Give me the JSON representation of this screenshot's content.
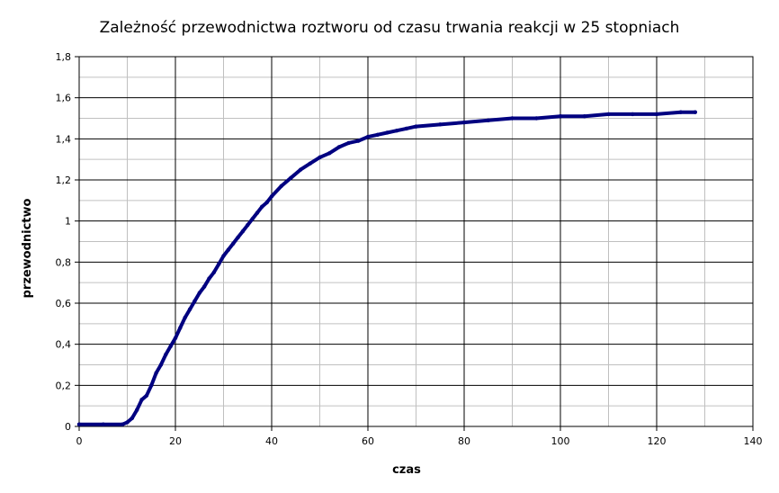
{
  "chart_data": {
    "type": "line",
    "title": "Zależność przewodnictwa roztworu od czasu trwania reakcji w 25 stopniach",
    "xlabel": "czas",
    "ylabel": "przewodnictwo",
    "xlim": [
      0,
      140
    ],
    "ylim": [
      0,
      1.8
    ],
    "x_ticks": [
      0,
      20,
      40,
      60,
      80,
      100,
      120,
      140
    ],
    "x_tick_labels": [
      "0",
      "20",
      "40",
      "60",
      "80",
      "100",
      "120",
      "140"
    ],
    "y_ticks": [
      0,
      0.2,
      0.4,
      0.6,
      0.8,
      1,
      1.2,
      1.4,
      1.6,
      1.8
    ],
    "y_tick_labels": [
      "0",
      "0,2",
      "0,4",
      "0,6",
      "0,8",
      "1",
      "1,2",
      "1,4",
      "1,6",
      "1,8"
    ],
    "grid": true,
    "legend": "none",
    "series": [
      {
        "color": "#000080",
        "x": [
          0,
          5,
          9,
          10,
          11,
          12,
          13,
          14,
          15,
          16,
          17,
          18,
          19,
          20,
          21,
          22,
          23,
          24,
          25,
          26,
          27,
          28,
          29,
          30,
          31,
          32,
          33,
          34,
          35,
          36,
          37,
          38,
          39,
          40,
          42,
          44,
          46,
          48,
          50,
          52,
          54,
          56,
          58,
          60,
          62,
          64,
          66,
          68,
          70,
          75,
          80,
          85,
          90,
          95,
          100,
          105,
          110,
          115,
          120,
          125,
          128
        ],
        "y": [
          0.01,
          0.01,
          0.01,
          0.02,
          0.04,
          0.08,
          0.13,
          0.15,
          0.2,
          0.26,
          0.3,
          0.35,
          0.39,
          0.43,
          0.48,
          0.53,
          0.57,
          0.61,
          0.65,
          0.68,
          0.72,
          0.75,
          0.79,
          0.83,
          0.86,
          0.89,
          0.92,
          0.95,
          0.98,
          1.01,
          1.04,
          1.07,
          1.09,
          1.12,
          1.17,
          1.21,
          1.25,
          1.28,
          1.31,
          1.33,
          1.36,
          1.38,
          1.39,
          1.41,
          1.42,
          1.43,
          1.44,
          1.45,
          1.46,
          1.47,
          1.48,
          1.49,
          1.5,
          1.5,
          1.51,
          1.51,
          1.52,
          1.52,
          1.52,
          1.53,
          1.53
        ]
      }
    ]
  }
}
